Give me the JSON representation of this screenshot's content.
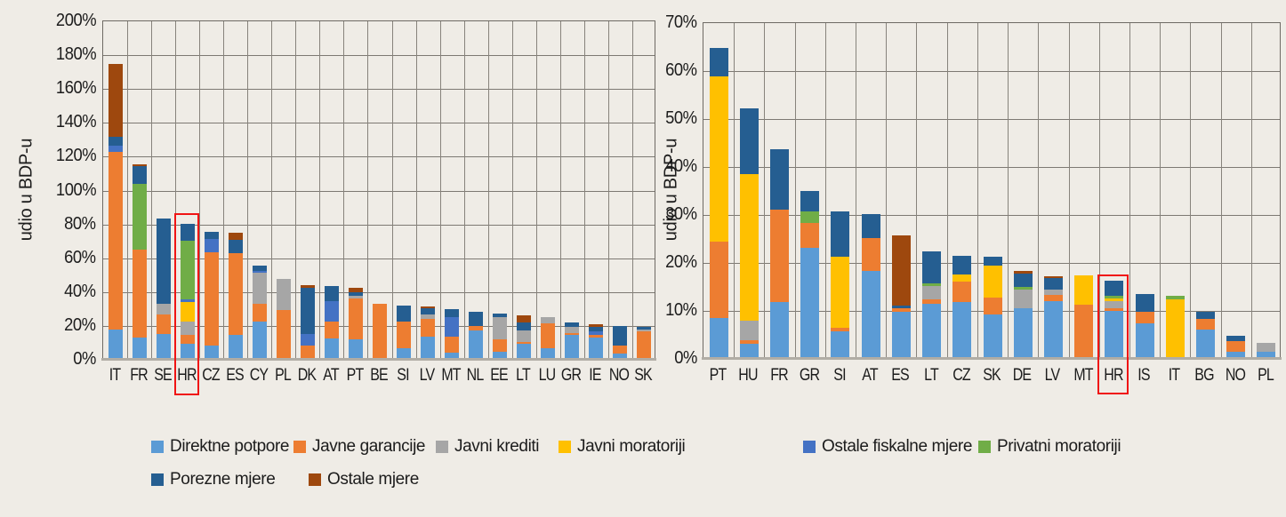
{
  "page": {
    "background": "#efece6"
  },
  "axis": {
    "y_title": "udio u BDP-u"
  },
  "legend": {
    "items": [
      {
        "label": "Direktne potpore",
        "color": "#5B9BD5"
      },
      {
        "label": "Javne garancije",
        "color": "#ED7D31"
      },
      {
        "label": "Javni krediti",
        "color": "#A6A6A6"
      },
      {
        "label": "Javni moratoriji",
        "color": "#FFC000"
      },
      {
        "label": "Ostale fiskalne mjere",
        "color": "#4472C4"
      },
      {
        "label": "Privatni moratoriji",
        "color": "#70AD47"
      },
      {
        "label": "Porezne mjere",
        "color": "#255E91"
      },
      {
        "label": "Ostale mjere",
        "color": "#9E480E"
      }
    ]
  },
  "chart_data": [
    {
      "type": "bar",
      "stacked": true,
      "title": "",
      "ylabel": "udio u BDP-u",
      "ylim": [
        0,
        200
      ],
      "ytick_step": 20,
      "ytick_suffix": "%",
      "grid": true,
      "highlight_category": "HR",
      "highlight_color": "#f01414",
      "categories": [
        "IT",
        "FR",
        "SE",
        "HR",
        "CZ",
        "ES",
        "CY",
        "PL",
        "DK",
        "AT",
        "PT",
        "BE",
        "SI",
        "LV",
        "MT",
        "NL",
        "EE",
        "LT",
        "LU",
        "GR",
        "IE",
        "NO",
        "SK"
      ],
      "series": [
        {
          "name": "Direktne potpore",
          "color": "#5B9BD5",
          "values": [
            17,
            12,
            14.4,
            8.2,
            7.5,
            13.7,
            21.5,
            0,
            0,
            11.7,
            10.9,
            0,
            5.9,
            12.6,
            3,
            16.4,
            3.8,
            8.2,
            5.6,
            13.5,
            12,
            2.6,
            0
          ]
        },
        {
          "name": "Javne garancije",
          "color": "#ED7D31",
          "values": [
            105,
            52,
            11.4,
            5.6,
            55,
            48.3,
            10.3,
            28.5,
            7.3,
            9.7,
            24.4,
            32,
            15.4,
            10.5,
            9.7,
            2.3,
            7,
            1.3,
            14.9,
            1.2,
            1.8,
            4.7,
            15.5
          ]
        },
        {
          "name": "Javni krediti",
          "color": "#A6A6A6",
          "values": [
            0,
            0,
            6.2,
            7.6,
            0,
            0,
            18.4,
            18.3,
            0,
            0,
            1.7,
            0,
            0,
            2.6,
            0,
            0,
            13.5,
            6.6,
            3.5,
            3.5,
            0,
            0,
            1.3
          ]
        },
        {
          "name": "Javni moratoriji",
          "color": "#FFC000",
          "values": [
            0,
            0,
            0,
            11.7,
            0,
            0,
            0,
            0,
            0,
            0,
            0,
            0,
            0,
            0,
            0,
            0,
            0,
            0,
            0,
            0,
            0,
            0,
            0
          ]
        },
        {
          "name": "Ostale fiskalne mjere",
          "color": "#4472C4",
          "values": [
            3.5,
            0,
            0,
            1.4,
            7.8,
            0,
            1.4,
            0,
            7,
            12.1,
            0,
            0,
            0,
            0,
            11.3,
            0,
            0,
            0,
            0,
            0,
            2.2,
            0,
            0
          ]
        },
        {
          "name": "Privatni moratoriji",
          "color": "#70AD47",
          "values": [
            0,
            39,
            0,
            34.9,
            0,
            0,
            0,
            0,
            0,
            0,
            0,
            0,
            0,
            0,
            0,
            0,
            0,
            0,
            0,
            0,
            0,
            0,
            0
          ]
        },
        {
          "name": "Porezne mjere",
          "color": "#255E91",
          "values": [
            5,
            10.2,
            50.3,
            9.7,
            4.4,
            7.6,
            3.2,
            0,
            27.2,
            9,
            1.8,
            0,
            9.7,
            3.9,
            4.9,
            8.8,
            2.2,
            4.9,
            0,
            2.8,
            2.4,
            11.4,
            1.4
          ]
        },
        {
          "name": "Ostale mjere",
          "color": "#9E480E",
          "values": [
            43.5,
            1.3,
            0,
            0,
            0,
            4.4,
            0,
            0,
            1.8,
            0,
            2.7,
            0,
            0,
            1,
            0,
            0,
            0,
            4.2,
            0,
            0,
            1.6,
            0,
            0
          ]
        }
      ]
    },
    {
      "type": "bar",
      "stacked": true,
      "title": "",
      "ylabel": "udio u BDP-u",
      "ylim": [
        0,
        70
      ],
      "ytick_step": 10,
      "ytick_suffix": "%",
      "grid": true,
      "highlight_category": "HR",
      "highlight_color": "#f01414",
      "categories": [
        "PT",
        "HU",
        "FR",
        "GR",
        "SI",
        "AT",
        "ES",
        "LT",
        "CZ",
        "SK",
        "DE",
        "LV",
        "MT",
        "HR",
        "IS",
        "IT",
        "BG",
        "NO",
        "PL"
      ],
      "series": [
        {
          "name": "Direktne potpore",
          "color": "#5B9BD5",
          "values": [
            8.1,
            2.8,
            11.4,
            22.7,
            5.4,
            18,
            9.5,
            11.1,
            11.4,
            8.9,
            10.2,
            11.7,
            0,
            9.7,
            7.1,
            0,
            5.7,
            1.2,
            1.1
          ]
        },
        {
          "name": "Javne garancije",
          "color": "#ED7D31",
          "values": [
            15.9,
            0.8,
            19.3,
            5.2,
            0.8,
            6.8,
            0.7,
            0.9,
            4.3,
            3.5,
            0,
            1.3,
            11,
            0.5,
            2.3,
            0,
            2.3,
            2.2,
            0
          ]
        },
        {
          "name": "Javni krediti",
          "color": "#A6A6A6",
          "values": [
            0,
            4,
            0,
            0,
            0,
            0,
            0,
            2.9,
            0,
            0,
            3.9,
            1.1,
            0,
            1.5,
            0,
            0,
            0,
            0,
            1.9
          ]
        },
        {
          "name": "Javni moratoriji",
          "color": "#FFC000",
          "values": [
            34.5,
            30.5,
            0,
            0,
            14.7,
            0,
            0,
            0,
            1.6,
            6.7,
            0,
            0,
            6,
            0.5,
            0,
            12,
            0,
            0,
            0
          ]
        },
        {
          "name": "Ostale fiskalne mjere",
          "color": "#4472C4",
          "values": [
            0,
            0,
            0,
            0,
            0,
            0,
            0,
            0,
            0,
            0,
            0,
            0,
            0,
            0,
            0,
            0,
            0,
            0,
            0
          ]
        },
        {
          "name": "Privatni moratoriji",
          "color": "#70AD47",
          "values": [
            0,
            0,
            0,
            2.5,
            0,
            0,
            0,
            0.4,
            0,
            0,
            0.5,
            0,
            0,
            0.5,
            0,
            0.7,
            0,
            0,
            0
          ]
        },
        {
          "name": "Porezne mjere",
          "color": "#255E91",
          "values": [
            6,
            13.8,
            12.6,
            4.2,
            9.5,
            5,
            0.6,
            6.8,
            3.8,
            1.8,
            2.8,
            2.3,
            0,
            3.3,
            3.7,
            0,
            1.4,
            1,
            0
          ]
        },
        {
          "name": "Ostale mjere",
          "color": "#9E480E",
          "values": [
            0,
            0,
            0,
            0,
            0,
            0,
            14.5,
            0,
            0,
            0,
            0.6,
            0.5,
            0,
            0,
            0,
            0,
            0,
            0,
            0
          ]
        }
      ]
    }
  ]
}
